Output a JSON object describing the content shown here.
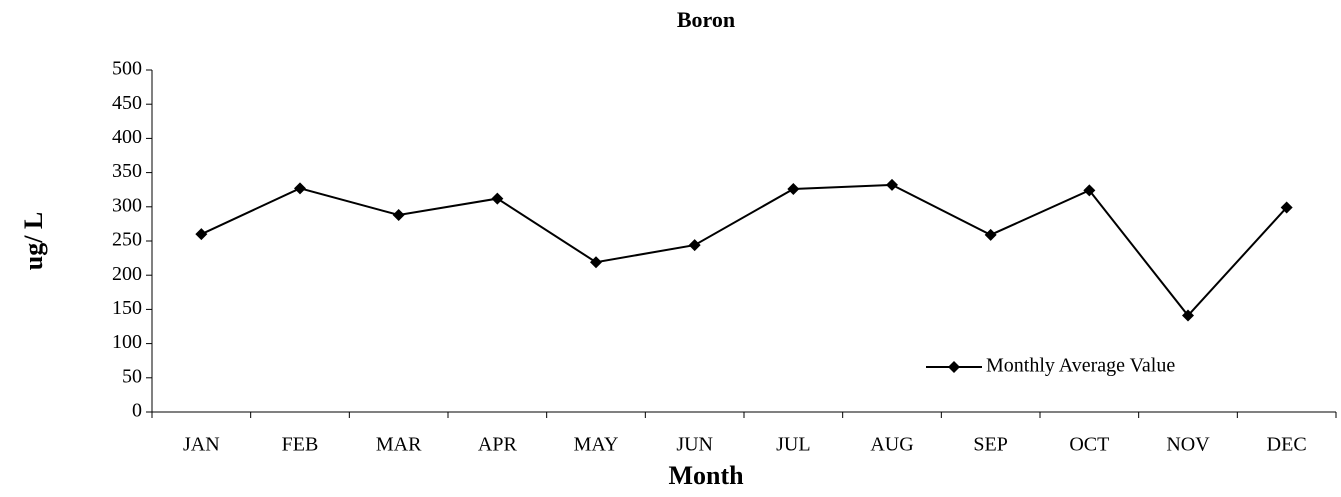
{
  "chart_data": {
    "type": "line",
    "title": "Boron",
    "xlabel": "Month",
    "ylabel": "ug/ L",
    "categories": [
      "JAN",
      "FEB",
      "MAR",
      "APR",
      "MAY",
      "JUN",
      "JUL",
      "AUG",
      "SEP",
      "OCT",
      "NOV",
      "DEC"
    ],
    "series": [
      {
        "name": "Monthly Average Value",
        "color": "#000000",
        "values": [
          260,
          327,
          288,
          312,
          219,
          244,
          326,
          332,
          259,
          324,
          141,
          299
        ]
      }
    ],
    "ylim": [
      0,
      500
    ],
    "yticks": [
      0,
      50,
      100,
      150,
      200,
      250,
      300,
      350,
      400,
      450,
      500
    ],
    "grid": false,
    "legend": "lower right"
  }
}
